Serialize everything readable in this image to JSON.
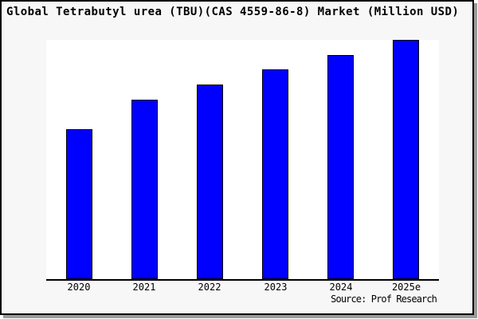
{
  "title": "Global Tetrabutyl urea (TBU)(CAS 4559-86-8) Market (Million USD)",
  "source": "Source: Prof Research",
  "colors": {
    "bar_fill": "#0000ff",
    "bar_border": "#000000",
    "figure_background": "#f7f7f7",
    "plot_background": "#ffffff",
    "axis": "#000000",
    "frame_border": "#000000",
    "frame_shadow": "#9a9a9a",
    "text": "#000000"
  },
  "chart_data": {
    "type": "bar",
    "title": "Global Tetrabutyl urea (TBU)(CAS 4559-86-8) Market (Million USD)",
    "categories": [
      "2020",
      "2021",
      "2022",
      "2023",
      "2024",
      "2025e"
    ],
    "values": [
      62.8,
      75.1,
      81.5,
      87.8,
      93.8,
      100
    ],
    "values_note": "y-axis is unlabeled in the image; values are relative bar heights with 2025e = 100",
    "xlabel": "",
    "ylabel": "",
    "ylim": [
      0,
      100
    ],
    "grid": false,
    "legend": false,
    "source": "Source: Prof Research"
  }
}
